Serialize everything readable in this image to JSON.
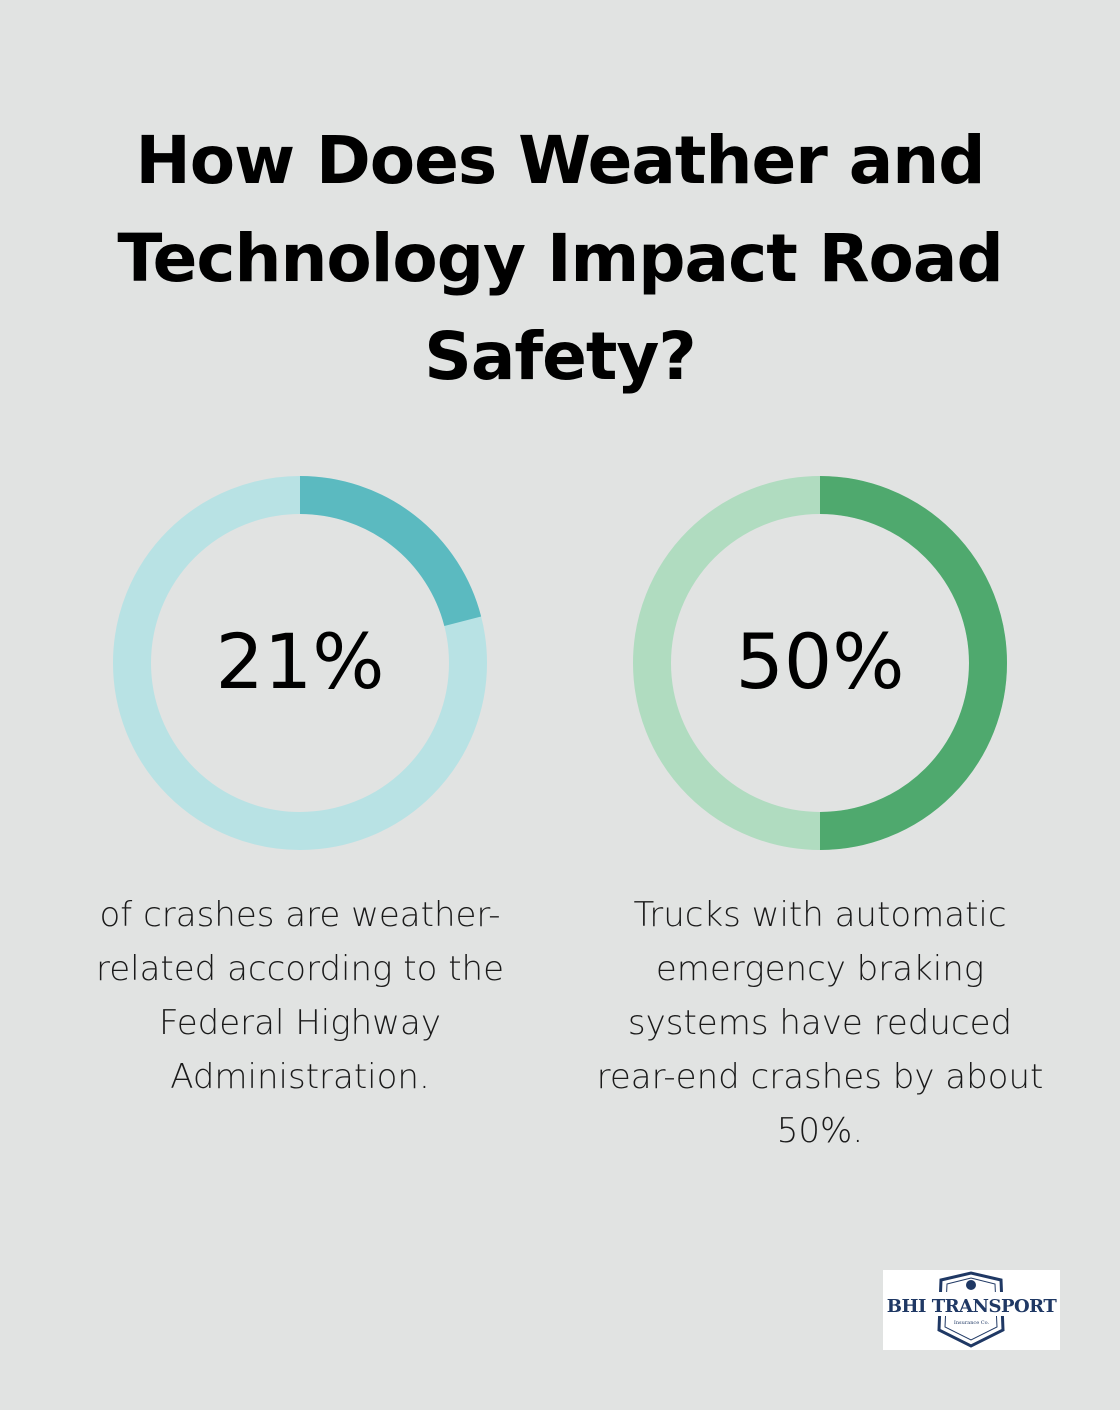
{
  "title": "How Does Weather and Technology Impact Road Safety?",
  "chart_data": [
    {
      "type": "pie",
      "values": [
        21,
        79
      ],
      "label": "21%",
      "description": "of crashes are weather-related according to the Federal Highway Administration.",
      "colors": {
        "fill": "#5bbac0",
        "track": "#b8e2e4"
      }
    },
    {
      "type": "pie",
      "values": [
        50,
        50
      ],
      "label": "50%",
      "description": "Trucks with automatic emergency braking systems have reduced rear-end crashes by about 50%.",
      "colors": {
        "fill": "#4fa96e",
        "track": "#b0dcc0"
      }
    }
  ],
  "logo": {
    "name": "BHI TRANSPORT",
    "tagline": "Insurance Co.",
    "color": "#1f3864",
    "icon": "shield-logo-icon"
  },
  "colors": {
    "background": "#e1e3e2"
  }
}
